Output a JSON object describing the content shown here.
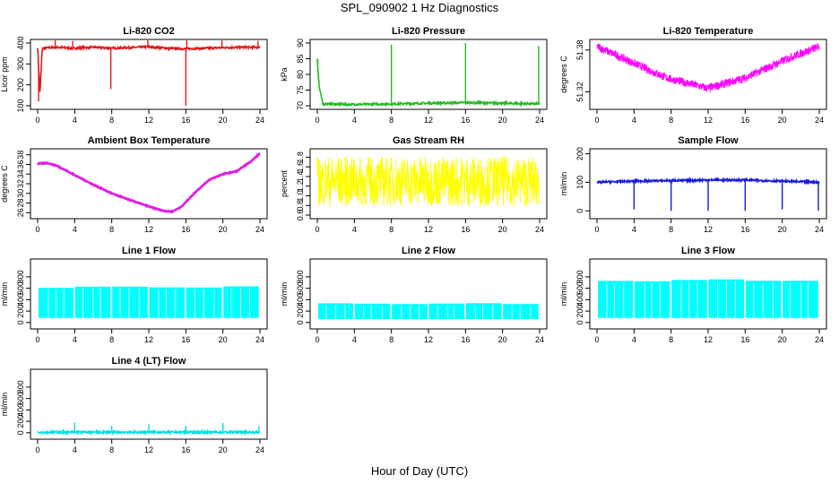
{
  "figure": {
    "title": "SPL_090902  1 Hz Diagnostics",
    "xlabel": "Hour of Day (UTC)"
  },
  "chart_data": [
    {
      "type": "line",
      "title": "Li-820 CO2",
      "xlabel": "",
      "ylabel": "Licor ppm",
      "xlim": [
        0,
        24
      ],
      "ylim": [
        100,
        400
      ],
      "xticks": [
        "0",
        "4",
        "8",
        "12",
        "16",
        "20",
        "24"
      ],
      "yticks": [
        "100",
        "200",
        "300",
        "400"
      ],
      "color": "#e31a1c",
      "style": "spiky",
      "series": [
        {
          "x": [
            0,
            0.25,
            0.5,
            2,
            4,
            6,
            8,
            10,
            12,
            14,
            16,
            18,
            20,
            22,
            24
          ],
          "y": [
            380,
            160,
            375,
            380,
            375,
            380,
            375,
            378,
            382,
            375,
            372,
            375,
            378,
            380,
            380
          ]
        }
      ],
      "spikes": [
        {
          "x": 0.1,
          "y": 120
        },
        {
          "x": 1.9,
          "y": 420
        },
        {
          "x": 3.8,
          "y": 410
        },
        {
          "x": 7.9,
          "y": 180
        },
        {
          "x": 11.9,
          "y": 420
        },
        {
          "x": 16.0,
          "y": 100
        },
        {
          "x": 16.1,
          "y": 440
        },
        {
          "x": 19.9,
          "y": 420
        },
        {
          "x": 23.8,
          "y": 410
        }
      ]
    },
    {
      "type": "line",
      "title": "Li-820 Pressure",
      "xlabel": "",
      "ylabel": "kPa",
      "xlim": [
        0,
        24
      ],
      "ylim": [
        70,
        90
      ],
      "xticks": [
        "0",
        "4",
        "8",
        "12",
        "16",
        "20",
        "24"
      ],
      "yticks": [
        "70",
        "75",
        "80",
        "85",
        "90"
      ],
      "color": "#22bb22",
      "style": "spiky",
      "series": [
        {
          "x": [
            0,
            0.2,
            0.6,
            4,
            8,
            12,
            16,
            20,
            24
          ],
          "y": [
            85,
            76,
            70.6,
            70.4,
            70.6,
            70.8,
            71,
            70.8,
            70.6
          ]
        }
      ],
      "spikes": [
        {
          "x": 0.05,
          "y": 85
        },
        {
          "x": 8.0,
          "y": 89.5
        },
        {
          "x": 16.0,
          "y": 90
        },
        {
          "x": 23.9,
          "y": 89
        }
      ]
    },
    {
      "type": "line",
      "title": "Li-820 Temperature",
      "xlabel": "",
      "ylabel": "degrees C",
      "xlim": [
        0,
        24
      ],
      "ylim": [
        51.3,
        51.39
      ],
      "xticks": [
        "0",
        "4",
        "8",
        "12",
        "16",
        "20",
        "24"
      ],
      "yticks": [
        "51.32",
        "51.38"
      ],
      "color": "#ff00ff",
      "style": "quantized",
      "series": [
        {
          "x": [
            0,
            2.5,
            5,
            7.5,
            12,
            16,
            18.5,
            21,
            24
          ],
          "y": [
            51.385,
            51.37,
            51.355,
            51.34,
            51.325,
            51.34,
            51.355,
            51.37,
            51.385
          ]
        }
      ],
      "band_height": 0.012
    },
    {
      "type": "line",
      "title": "Ambient Box Temperature",
      "xlabel": "",
      "ylabel": "degrees C",
      "xlim": [
        0,
        24
      ],
      "ylim": [
        25.5,
        38.5
      ],
      "xticks": [
        "0",
        "4",
        "8",
        "12",
        "16",
        "20",
        "24"
      ],
      "yticks": [
        "26",
        "28",
        "30",
        "32",
        "34",
        "36",
        "38"
      ],
      "color": "#e020e0",
      "style": "line",
      "series": [
        {
          "x": [
            0,
            1,
            2,
            4,
            6,
            8,
            10,
            12,
            13.5,
            14.5,
            15.5,
            17,
            18.5,
            20,
            21.5,
            23,
            24
          ],
          "y": [
            36.2,
            36.3,
            35.8,
            33.8,
            31.8,
            30,
            28.6,
            27.3,
            26.4,
            26.2,
            27.2,
            30.2,
            32.8,
            34,
            34.6,
            36.6,
            38.3
          ]
        }
      ]
    },
    {
      "type": "area",
      "title": "Gas Stream RH",
      "xlabel": "",
      "ylabel": "percent",
      "xlim": [
        0,
        24
      ],
      "ylim": [
        0.6,
        1.9
      ],
      "xticks": [
        "0",
        "4",
        "8",
        "12",
        "16",
        "20",
        "24"
      ],
      "yticks": [
        "0.6",
        "0.8",
        "1.0",
        "1.2",
        "1.4",
        "1.6",
        "1.8"
      ],
      "color": "#ffff00",
      "style": "noise",
      "upper": 1.82,
      "lower": 0.78
    },
    {
      "type": "line",
      "title": "Sample Flow",
      "xlabel": "",
      "ylabel": "ml/min",
      "xlim": [
        0,
        24
      ],
      "ylim": [
        -15,
        205
      ],
      "xticks": [
        "0",
        "4",
        "8",
        "12",
        "16",
        "20",
        "24"
      ],
      "yticks": [
        "0",
        "100",
        "200"
      ],
      "color": "#1a1adc",
      "style": "spiky",
      "series": [
        {
          "x": [
            0,
            4,
            8,
            12,
            16,
            20,
            24
          ],
          "y": [
            100,
            104,
            106,
            108,
            108,
            104,
            100
          ]
        }
      ],
      "spikes": [
        {
          "x": 4.0,
          "y": 5
        },
        {
          "x": 8.0,
          "y": 0
        },
        {
          "x": 12.0,
          "y": 0
        },
        {
          "x": 16.0,
          "y": 0
        },
        {
          "x": 20.0,
          "y": 5
        },
        {
          "x": 23.9,
          "y": 0
        }
      ]
    },
    {
      "type": "area",
      "title": "Line 1 Flow",
      "xlabel": "",
      "ylabel": "ml/min",
      "xlim": [
        0,
        24
      ],
      "ylim": [
        -50,
        1050
      ],
      "xticks": [
        "0",
        "4",
        "8",
        "12",
        "16",
        "20",
        "24"
      ],
      "yticks": [
        "0",
        "200",
        "400",
        "600",
        "800"
      ],
      "color": "#00ffff",
      "style": "blocks",
      "upper": 620,
      "lower": 80,
      "gaps": [
        4,
        8,
        12,
        16,
        20,
        24
      ]
    },
    {
      "type": "area",
      "title": "Line 2 Flow",
      "xlabel": "",
      "ylabel": "ml/min",
      "xlim": [
        0,
        24
      ],
      "ylim": [
        -50,
        1050
      ],
      "xticks": [
        "0",
        "4",
        "8",
        "12",
        "16",
        "20",
        "24"
      ],
      "yticks": [
        "0",
        "200",
        "400",
        "600",
        "800"
      ],
      "color": "#00ffff",
      "style": "blocks",
      "upper": 330,
      "lower": 60,
      "gaps": [
        4,
        8,
        12,
        16,
        20,
        24
      ]
    },
    {
      "type": "area",
      "title": "Line 3 Flow",
      "xlabel": "",
      "ylabel": "ml/min",
      "xlim": [
        0,
        24
      ],
      "ylim": [
        -50,
        1050
      ],
      "xticks": [
        "0",
        "4",
        "8",
        "12",
        "16",
        "20",
        "24"
      ],
      "yticks": [
        "0",
        "200",
        "400",
        "600",
        "800"
      ],
      "color": "#00ffff",
      "style": "blocks",
      "upper": 740,
      "lower": 80,
      "gaps": [
        4,
        8,
        12,
        16,
        20,
        24
      ]
    },
    {
      "type": "line",
      "title": "Line 4 (LT) Flow",
      "xlabel": "",
      "ylabel": "ml/min",
      "xlim": [
        0,
        24
      ],
      "ylim": [
        -50,
        1050
      ],
      "xticks": [
        "0",
        "4",
        "8",
        "12",
        "16",
        "20",
        "24"
      ],
      "yticks": [
        "0",
        "200",
        "400",
        "600",
        "800"
      ],
      "color": "#00e0e0",
      "style": "spiky",
      "series": [
        {
          "x": [
            0,
            24
          ],
          "y": [
            10,
            10
          ]
        }
      ],
      "spikes": [
        {
          "x": 4.0,
          "y": 180
        },
        {
          "x": 8.0,
          "y": 120
        },
        {
          "x": 12.0,
          "y": 150
        },
        {
          "x": 16.0,
          "y": 120
        },
        {
          "x": 20.0,
          "y": 170
        },
        {
          "x": 23.9,
          "y": 120
        }
      ]
    }
  ]
}
